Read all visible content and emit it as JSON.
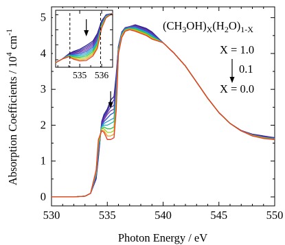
{
  "chart_data": [
    {
      "type": "line",
      "xlabel": "Photon Energy / eV",
      "ylabel": "Absorption Coefficients / 10^4 cm^-1",
      "ylabel_main": "Absorption Coefficients / 10",
      "ylabel_exp": "4",
      "ylabel_unit": "cm",
      "ylabel_unit_exp": "-1",
      "xlim": [
        530,
        550
      ],
      "ylim": [
        -0.25,
        5.3
      ],
      "xticks": [
        "530",
        "535",
        "540",
        "545",
        "550"
      ],
      "yticks": [
        "0",
        "1",
        "2",
        "3",
        "4",
        "5"
      ],
      "grid": false,
      "legend": {
        "formula": [
          "(CH",
          "3",
          "OH)",
          "X",
          "(H",
          "2",
          "O)",
          "1-X"
        ],
        "x_values": [
          "X = 1.0",
          "0.1",
          "X = 0.0"
        ],
        "placement": "top-right"
      },
      "arrow_annotation_x": 535.3,
      "series_colors": [
        "#2a1c8c",
        "#3a2ea8",
        "#5c2fa0",
        "#7a3cb0",
        "#2c4fd0",
        "#2a9bd8",
        "#19b8b0",
        "#2cc24a",
        "#9fd21c",
        "#f0a01c",
        "#e8381c"
      ],
      "x": [
        530,
        531,
        532,
        533,
        533.5,
        534,
        534.2,
        534.5,
        534.7,
        535,
        535.3,
        535.6,
        535.8,
        536,
        536.3,
        536.6,
        537,
        537.5,
        538,
        538.5,
        539,
        540,
        541,
        542,
        543,
        544,
        545,
        546,
        547,
        548,
        549,
        550
      ],
      "series": [
        {
          "values": [
            0,
            0,
            0,
            0.02,
            0.1,
            0.5,
            1.1,
            2.1,
            2.3,
            2.45,
            2.7,
            2.8,
            3.4,
            4.2,
            4.6,
            4.7,
            4.75,
            4.8,
            4.75,
            4.7,
            4.6,
            4.3,
            4.0,
            3.65,
            3.2,
            2.75,
            2.35,
            2.05,
            1.85,
            1.75,
            1.7,
            1.65
          ]
        },
        {
          "values": [
            0,
            0,
            0,
            0.02,
            0.1,
            0.52,
            1.15,
            2.05,
            2.25,
            2.4,
            2.6,
            2.7,
            3.3,
            4.2,
            4.6,
            4.72,
            4.75,
            4.78,
            4.73,
            4.68,
            4.58,
            4.3,
            4.0,
            3.65,
            3.2,
            2.75,
            2.35,
            2.05,
            1.85,
            1.74,
            1.68,
            1.65
          ]
        },
        {
          "values": [
            0,
            0,
            0,
            0.02,
            0.1,
            0.55,
            1.2,
            2.05,
            2.2,
            2.35,
            2.5,
            2.55,
            3.2,
            4.2,
            4.6,
            4.72,
            4.75,
            4.78,
            4.72,
            4.66,
            4.56,
            4.3,
            4.0,
            3.65,
            3.2,
            2.75,
            2.35,
            2.05,
            1.85,
            1.74,
            1.68,
            1.64
          ]
        },
        {
          "values": [
            0,
            0,
            0,
            0.02,
            0.1,
            0.58,
            1.25,
            2.0,
            2.15,
            2.3,
            2.4,
            2.45,
            3.1,
            4.15,
            4.58,
            4.72,
            4.74,
            4.76,
            4.7,
            4.64,
            4.55,
            4.3,
            4.0,
            3.65,
            3.2,
            2.75,
            2.35,
            2.05,
            1.84,
            1.73,
            1.67,
            1.63
          ]
        },
        {
          "values": [
            0,
            0,
            0,
            0.02,
            0.1,
            0.6,
            1.3,
            2.0,
            2.1,
            2.2,
            2.3,
            2.35,
            3.0,
            4.15,
            4.58,
            4.7,
            4.73,
            4.74,
            4.68,
            4.62,
            4.53,
            4.3,
            4.0,
            3.65,
            3.2,
            2.75,
            2.35,
            2.05,
            1.84,
            1.72,
            1.66,
            1.62
          ]
        },
        {
          "values": [
            0,
            0,
            0,
            0.02,
            0.1,
            0.62,
            1.35,
            1.95,
            2.05,
            2.1,
            2.15,
            2.2,
            2.9,
            4.1,
            4.55,
            4.68,
            4.72,
            4.72,
            4.66,
            4.6,
            4.5,
            4.3,
            4.0,
            3.65,
            3.2,
            2.75,
            2.35,
            2.05,
            1.84,
            1.72,
            1.66,
            1.62
          ]
        },
        {
          "values": [
            0,
            0,
            0,
            0.02,
            0.1,
            0.65,
            1.4,
            1.95,
            2.0,
            2.0,
            2.05,
            2.1,
            2.8,
            4.1,
            4.55,
            4.68,
            4.7,
            4.7,
            4.64,
            4.58,
            4.48,
            4.3,
            4.0,
            3.65,
            3.2,
            2.75,
            2.35,
            2.05,
            1.84,
            1.72,
            1.65,
            1.62
          ]
        },
        {
          "values": [
            0,
            0,
            0,
            0.02,
            0.1,
            0.68,
            1.45,
            1.9,
            1.95,
            1.9,
            1.9,
            1.95,
            2.7,
            4.05,
            4.5,
            4.66,
            4.7,
            4.68,
            4.62,
            4.56,
            4.46,
            4.3,
            4.0,
            3.65,
            3.2,
            2.75,
            2.35,
            2.05,
            1.84,
            1.72,
            1.65,
            1.61
          ]
        },
        {
          "values": [
            0,
            0,
            0,
            0.02,
            0.1,
            0.7,
            1.5,
            1.9,
            1.9,
            1.8,
            1.8,
            1.85,
            2.6,
            4.05,
            4.5,
            4.65,
            4.68,
            4.66,
            4.6,
            4.54,
            4.44,
            4.3,
            4.0,
            3.65,
            3.2,
            2.75,
            2.35,
            2.05,
            1.84,
            1.71,
            1.64,
            1.6
          ]
        },
        {
          "values": [
            0,
            0,
            0,
            0.02,
            0.1,
            0.72,
            1.55,
            1.85,
            1.85,
            1.7,
            1.7,
            1.75,
            2.5,
            4.0,
            4.5,
            4.64,
            4.68,
            4.64,
            4.58,
            4.52,
            4.42,
            4.3,
            4.0,
            3.65,
            3.2,
            2.75,
            2.35,
            2.05,
            1.84,
            1.71,
            1.64,
            1.6
          ]
        },
        {
          "values": [
            0,
            0,
            0,
            0.02,
            0.1,
            0.75,
            1.6,
            1.85,
            1.8,
            1.6,
            1.6,
            1.65,
            2.4,
            4.0,
            4.45,
            4.62,
            4.66,
            4.62,
            4.56,
            4.5,
            4.4,
            4.3,
            4.0,
            3.65,
            3.2,
            2.75,
            2.35,
            2.05,
            1.84,
            1.7,
            1.63,
            1.6
          ]
        }
      ]
    },
    {
      "type": "line",
      "xticks": [
        "535",
        "536"
      ],
      "xlim": [
        533.9,
        536.5
      ],
      "ylim": [
        1.5,
        5.3
      ],
      "reference_lines_x": [
        534.55,
        535.95
      ],
      "arrow_annotation_x": 535.3,
      "x": [
        533.9,
        534.2,
        534.5,
        534.7,
        535.0,
        535.3,
        535.6,
        535.8,
        536.0,
        536.2,
        536.5
      ],
      "series": [
        {
          "values": [
            1.8,
            2.05,
            2.4,
            2.55,
            2.7,
            2.95,
            3.25,
            3.75,
            4.6,
            5.0,
            5.1
          ]
        },
        {
          "values": [
            1.8,
            2.05,
            2.38,
            2.5,
            2.62,
            2.85,
            3.15,
            3.65,
            4.55,
            5.0,
            5.1
          ]
        },
        {
          "values": [
            1.8,
            2.05,
            2.36,
            2.45,
            2.55,
            2.75,
            3.05,
            3.55,
            4.5,
            5.0,
            5.1
          ]
        },
        {
          "values": [
            1.8,
            2.05,
            2.34,
            2.4,
            2.48,
            2.65,
            2.95,
            3.45,
            4.45,
            4.95,
            5.1
          ]
        },
        {
          "values": [
            1.8,
            2.05,
            2.32,
            2.35,
            2.4,
            2.55,
            2.85,
            3.35,
            4.4,
            4.95,
            5.1
          ]
        },
        {
          "values": [
            1.8,
            2.05,
            2.3,
            2.3,
            2.32,
            2.45,
            2.75,
            3.25,
            4.35,
            4.9,
            5.1
          ]
        },
        {
          "values": [
            1.8,
            2.05,
            2.28,
            2.25,
            2.24,
            2.35,
            2.65,
            3.15,
            4.3,
            4.9,
            5.1
          ]
        },
        {
          "values": [
            1.8,
            2.05,
            2.26,
            2.2,
            2.16,
            2.25,
            2.55,
            3.05,
            4.25,
            4.85,
            5.1
          ]
        },
        {
          "values": [
            1.8,
            2.05,
            2.24,
            2.15,
            2.08,
            2.15,
            2.45,
            2.95,
            4.2,
            4.85,
            5.1
          ]
        },
        {
          "values": [
            1.8,
            2.05,
            2.22,
            2.1,
            2.0,
            2.05,
            2.35,
            2.85,
            4.15,
            4.8,
            5.1
          ]
        },
        {
          "values": [
            1.8,
            2.05,
            2.2,
            2.05,
            1.92,
            1.95,
            2.25,
            2.75,
            4.1,
            4.8,
            5.1
          ]
        }
      ]
    }
  ]
}
